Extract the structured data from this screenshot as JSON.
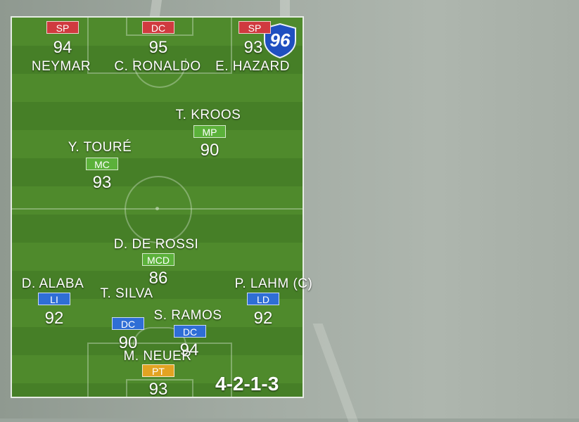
{
  "formation": "4-2-1-3",
  "team_rating": "96",
  "colors": {
    "forward": "#d03a3f",
    "midfield": "#5bb13a",
    "defense": "#2f6ed6",
    "goalkeeper": "#e3a322",
    "badge": "#1f4fc0"
  },
  "players": [
    {
      "name": "NEYMAR",
      "position": "SP",
      "rating": "94",
      "role": "forward"
    },
    {
      "name": "C. RONALDO",
      "position": "DC",
      "rating": "95",
      "role": "forward"
    },
    {
      "name": "E. HAZARD",
      "position": "SP",
      "rating": "93",
      "role": "forward"
    },
    {
      "name": "T. KROOS",
      "position": "MP",
      "rating": "90",
      "role": "midfield"
    },
    {
      "name": "Y. TOURÉ",
      "position": "MC",
      "rating": "93",
      "role": "midfield"
    },
    {
      "name": "D. DE ROSSI",
      "position": "MCD",
      "rating": "86",
      "role": "midfield"
    },
    {
      "name": "D. ALABA",
      "position": "LI",
      "rating": "92",
      "role": "defense"
    },
    {
      "name": "T. SILVA",
      "position": "DC",
      "rating": "90",
      "role": "defense"
    },
    {
      "name": "S. RAMOS",
      "position": "DC",
      "rating": "94",
      "role": "defense"
    },
    {
      "name": "P. LAHM (C)",
      "position": "LD",
      "rating": "92",
      "role": "defense"
    },
    {
      "name": "M. NEUER",
      "position": "PT",
      "rating": "93",
      "role": "goalkeeper"
    }
  ]
}
